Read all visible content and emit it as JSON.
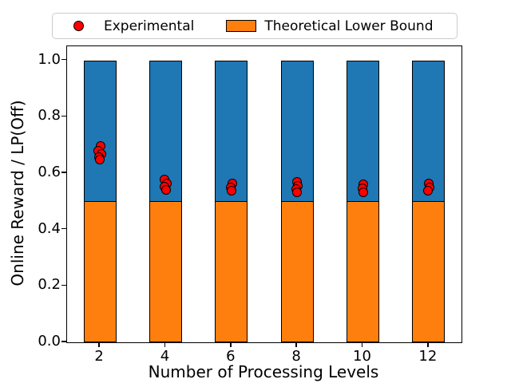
{
  "chart_data": {
    "type": "bar",
    "stacked": true,
    "title": "",
    "xlabel": "Number of Processing Levels",
    "ylabel": "Online Reward / LP(Off)",
    "xlim": [
      1,
      13
    ],
    "ylim": [
      0,
      1.05
    ],
    "grid": false,
    "bar_width": 1.0,
    "categories": [
      2,
      4,
      6,
      8,
      10,
      12
    ],
    "xticks": [
      "2",
      "4",
      "6",
      "8",
      "10",
      "12"
    ],
    "yticks": [
      "0.0",
      "0.2",
      "0.4",
      "0.6",
      "0.8",
      "1.0"
    ],
    "series": [
      {
        "label": "",
        "role": "total-bar",
        "color": "#1f77b4",
        "edge_color": "#000000",
        "values": [
          1.0,
          1.0,
          1.0,
          1.0,
          1.0,
          1.0
        ]
      },
      {
        "label": "Theoretical Lower Bound",
        "role": "lower-bound-bar",
        "color": "#ff7f0e",
        "edge_color": "#000000",
        "values": [
          0.5,
          0.5,
          0.5,
          0.5,
          0.5,
          0.5
        ]
      }
    ],
    "scatter": {
      "label": "Experimental",
      "color": "#ff0000",
      "edge_color": "#000000",
      "points": [
        {
          "x": 2,
          "ys": [
            0.695,
            0.678,
            0.668,
            0.657,
            0.648
          ],
          "dxs": [
            0.02,
            -0.05,
            0.04,
            -0.02,
            0.0
          ]
        },
        {
          "x": 4,
          "ys": [
            0.578,
            0.563,
            0.551,
            0.54
          ],
          "dxs": [
            -0.03,
            0.03,
            -0.04,
            0.0
          ]
        },
        {
          "x": 6,
          "ys": [
            0.563,
            0.549,
            0.537
          ],
          "dxs": [
            0.02,
            -0.02,
            0.0
          ]
        },
        {
          "x": 8,
          "ys": [
            0.57,
            0.554,
            0.542,
            0.531
          ],
          "dxs": [
            0.0,
            0.03,
            -0.03,
            0.0
          ]
        },
        {
          "x": 10,
          "ys": [
            0.561,
            0.546,
            0.531
          ],
          "dxs": [
            0.02,
            -0.02,
            0.01
          ]
        },
        {
          "x": 12,
          "ys": [
            0.563,
            0.55,
            0.537
          ],
          "dxs": [
            0.0,
            0.03,
            -0.02
          ]
        }
      ]
    },
    "legend": {
      "position": "top",
      "entries": [
        {
          "label": "Experimental",
          "marker": "circle",
          "color": "#ff0000"
        },
        {
          "label": "Theoretical Lower Bound",
          "marker": "rect",
          "color": "#ff7f0e"
        }
      ]
    }
  }
}
